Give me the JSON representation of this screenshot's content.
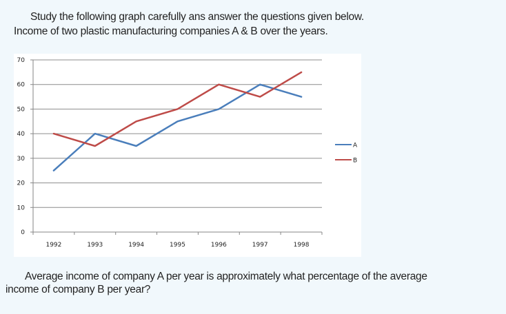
{
  "intro": {
    "line1": "Study the following graph carefully ans answer the questions given below.",
    "line2": "Income of two plastic manufacturing companies A & B over the years."
  },
  "question": {
    "line1": "Average income of company A per year is approximately what percentage of the average",
    "line2": "income of company B per year?"
  },
  "chart_data": {
    "type": "line",
    "title": "",
    "xlabel": "",
    "ylabel": "",
    "categories": [
      "1992",
      "1993",
      "1994",
      "1995",
      "1996",
      "1997",
      "1998"
    ],
    "yticks": [
      0,
      10,
      20,
      30,
      40,
      50,
      60,
      70
    ],
    "ylim": [
      0,
      70
    ],
    "grid": true,
    "legend_position": "right",
    "series": [
      {
        "name": "A",
        "color": "#4a7ebb",
        "values": [
          25,
          40,
          35,
          45,
          50,
          60,
          55
        ]
      },
      {
        "name": "B",
        "color": "#be4b48",
        "values": [
          40,
          35,
          45,
          50,
          60,
          55,
          65
        ]
      }
    ]
  }
}
